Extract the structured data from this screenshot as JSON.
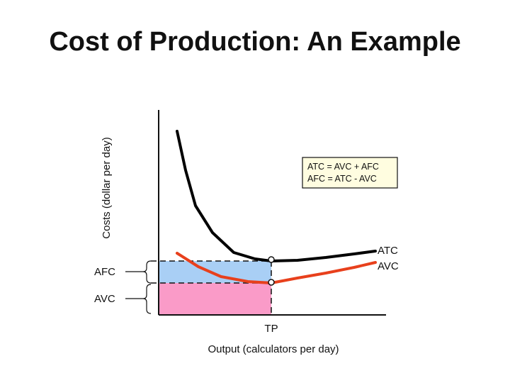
{
  "title": "Cost of Production: An Example",
  "axes": {
    "y_label": "Costs (dollar per day)",
    "x_label": "Output (calculators per day)"
  },
  "equation_box": {
    "line1": "ATC = AVC + AFC",
    "line2": "AFC = ATC - AVC"
  },
  "curves": {
    "atc": {
      "label": "ATC",
      "color": "#000000"
    },
    "avc": {
      "label": "AVC",
      "color": "#e8401c"
    }
  },
  "regions": {
    "afc": {
      "label": "AFC",
      "color": "#a9cff5"
    },
    "avc": {
      "label": "AVC",
      "color": "#fa9bc8"
    }
  },
  "markers": {
    "tp": "TP"
  }
}
